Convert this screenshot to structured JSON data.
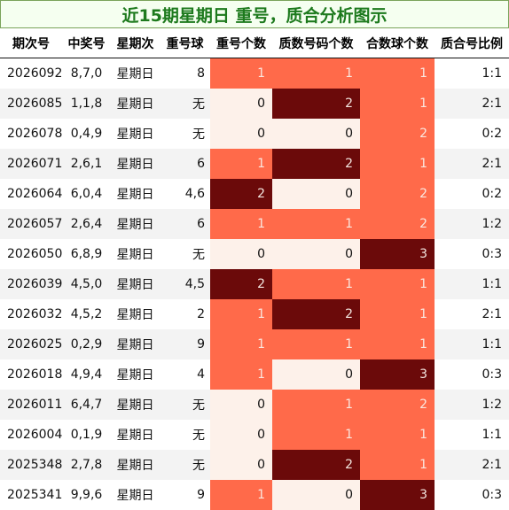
{
  "title": "近15期星期日 重号，质合分析图示",
  "headers": [
    "期次号",
    "中奖号",
    "星期次",
    "重号球",
    "重号个数",
    "质数号码个数",
    "合数球个数",
    "质合号比例"
  ],
  "colors": {
    "zero": "#fdf1ea",
    "one": "#ff6a4a",
    "two": "#ff6a4a",
    "max": "#6b0a0a",
    "alt_row": "#f3f3f3",
    "title_text": "#1d7a1d"
  },
  "rows": [
    {
      "issue": "2026092",
      "draw": "8,7,0",
      "day": "星期日",
      "ball": "8",
      "repeat": "1",
      "prime": "1",
      "composite": "1",
      "ratio": "1:1"
    },
    {
      "issue": "2026085",
      "draw": "1,1,8",
      "day": "星期日",
      "ball": "无",
      "repeat": "0",
      "prime": "2",
      "composite": "1",
      "ratio": "2:1"
    },
    {
      "issue": "2026078",
      "draw": "0,4,9",
      "day": "星期日",
      "ball": "无",
      "repeat": "0",
      "prime": "0",
      "composite": "2",
      "ratio": "0:2"
    },
    {
      "issue": "2026071",
      "draw": "2,6,1",
      "day": "星期日",
      "ball": "6",
      "repeat": "1",
      "prime": "2",
      "composite": "1",
      "ratio": "2:1"
    },
    {
      "issue": "2026064",
      "draw": "6,0,4",
      "day": "星期日",
      "ball": "4,6",
      "repeat": "2",
      "prime": "0",
      "composite": "2",
      "ratio": "0:2"
    },
    {
      "issue": "2026057",
      "draw": "2,6,4",
      "day": "星期日",
      "ball": "6",
      "repeat": "1",
      "prime": "1",
      "composite": "2",
      "ratio": "1:2"
    },
    {
      "issue": "2026050",
      "draw": "6,8,9",
      "day": "星期日",
      "ball": "无",
      "repeat": "0",
      "prime": "0",
      "composite": "3",
      "ratio": "0:3"
    },
    {
      "issue": "2026039",
      "draw": "4,5,0",
      "day": "星期日",
      "ball": "4,5",
      "repeat": "2",
      "prime": "1",
      "composite": "1",
      "ratio": "1:1"
    },
    {
      "issue": "2026032",
      "draw": "4,5,2",
      "day": "星期日",
      "ball": "2",
      "repeat": "1",
      "prime": "2",
      "composite": "1",
      "ratio": "2:1"
    },
    {
      "issue": "2026025",
      "draw": "0,2,9",
      "day": "星期日",
      "ball": "9",
      "repeat": "1",
      "prime": "1",
      "composite": "1",
      "ratio": "1:1"
    },
    {
      "issue": "2026018",
      "draw": "4,9,4",
      "day": "星期日",
      "ball": "4",
      "repeat": "1",
      "prime": "0",
      "composite": "3",
      "ratio": "0:3"
    },
    {
      "issue": "2026011",
      "draw": "6,4,7",
      "day": "星期日",
      "ball": "无",
      "repeat": "0",
      "prime": "1",
      "composite": "2",
      "ratio": "1:2"
    },
    {
      "issue": "2026004",
      "draw": "0,1,9",
      "day": "星期日",
      "ball": "无",
      "repeat": "0",
      "prime": "1",
      "composite": "1",
      "ratio": "1:1"
    },
    {
      "issue": "2025348",
      "draw": "2,7,8",
      "day": "星期日",
      "ball": "无",
      "repeat": "0",
      "prime": "2",
      "composite": "1",
      "ratio": "2:1"
    },
    {
      "issue": "2025341",
      "draw": "9,9,6",
      "day": "星期日",
      "ball": "9",
      "repeat": "1",
      "prime": "0",
      "composite": "3",
      "ratio": "0:3"
    }
  ]
}
